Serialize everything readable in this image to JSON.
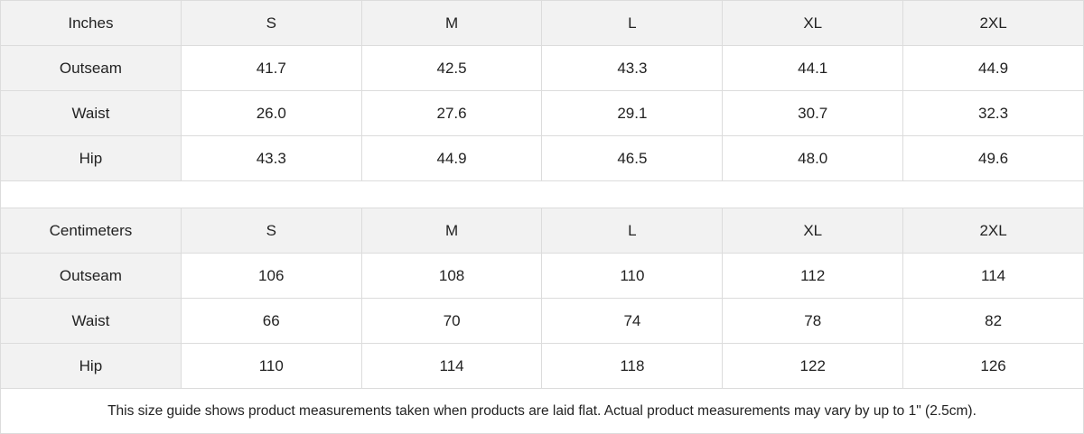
{
  "tables": [
    {
      "unit": "Inches",
      "sizes": [
        "S",
        "M",
        "L",
        "XL",
        "2XL"
      ],
      "rows": [
        {
          "label": "Outseam",
          "values": [
            "41.7",
            "42.5",
            "43.3",
            "44.1",
            "44.9"
          ]
        },
        {
          "label": "Waist",
          "values": [
            "26.0",
            "27.6",
            "29.1",
            "30.7",
            "32.3"
          ]
        },
        {
          "label": "Hip",
          "values": [
            "43.3",
            "44.9",
            "46.5",
            "48.0",
            "49.6"
          ]
        }
      ]
    },
    {
      "unit": "Centimeters",
      "sizes": [
        "S",
        "M",
        "L",
        "XL",
        "2XL"
      ],
      "rows": [
        {
          "label": "Outseam",
          "values": [
            "106",
            "108",
            "110",
            "112",
            "114"
          ]
        },
        {
          "label": "Waist",
          "values": [
            "66",
            "70",
            "74",
            "78",
            "82"
          ]
        },
        {
          "label": "Hip",
          "values": [
            "110",
            "114",
            "118",
            "122",
            "126"
          ]
        }
      ]
    }
  ],
  "note": "This size guide shows product measurements taken when products are laid flat.  Actual product measurements may vary by up to 1\" (2.5cm).",
  "colors": {
    "header_bg": "#f2f2f2",
    "border": "#dcdcdc",
    "text": "#222222"
  }
}
